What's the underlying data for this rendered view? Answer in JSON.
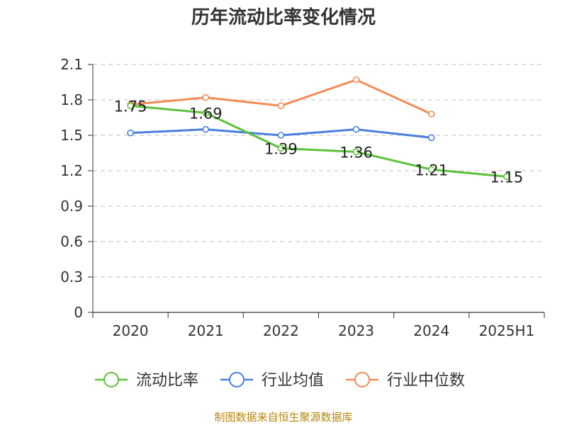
{
  "title": "历年流动比率变化情况",
  "source": "制图数据来自恒生聚源数据库",
  "chart_data": {
    "type": "line",
    "categories": [
      "2020",
      "2021",
      "2022",
      "2023",
      "2024",
      "2025H1"
    ],
    "ylim": [
      0,
      2.1
    ],
    "yticks": [
      "0",
      "0.3",
      "0.6",
      "0.9",
      "1.2",
      "1.5",
      "1.8",
      "2.1"
    ],
    "grid": true,
    "legend_position": "bottom",
    "series": [
      {
        "name": "流动比率",
        "color": "#5cc23b",
        "show_labels": true,
        "labels": [
          "1.75",
          "1.69",
          "1.39",
          "1.36",
          "1.21",
          "1.15"
        ],
        "values": [
          1.75,
          1.69,
          1.39,
          1.36,
          1.21,
          1.15
        ]
      },
      {
        "name": "行业均值",
        "color": "#4a7fde",
        "show_labels": false,
        "values": [
          1.52,
          1.55,
          1.5,
          1.55,
          1.48,
          null
        ]
      },
      {
        "name": "行业中位数",
        "color": "#f28c56",
        "show_labels": false,
        "values": [
          1.76,
          1.82,
          1.75,
          1.97,
          1.68,
          null
        ]
      }
    ]
  }
}
